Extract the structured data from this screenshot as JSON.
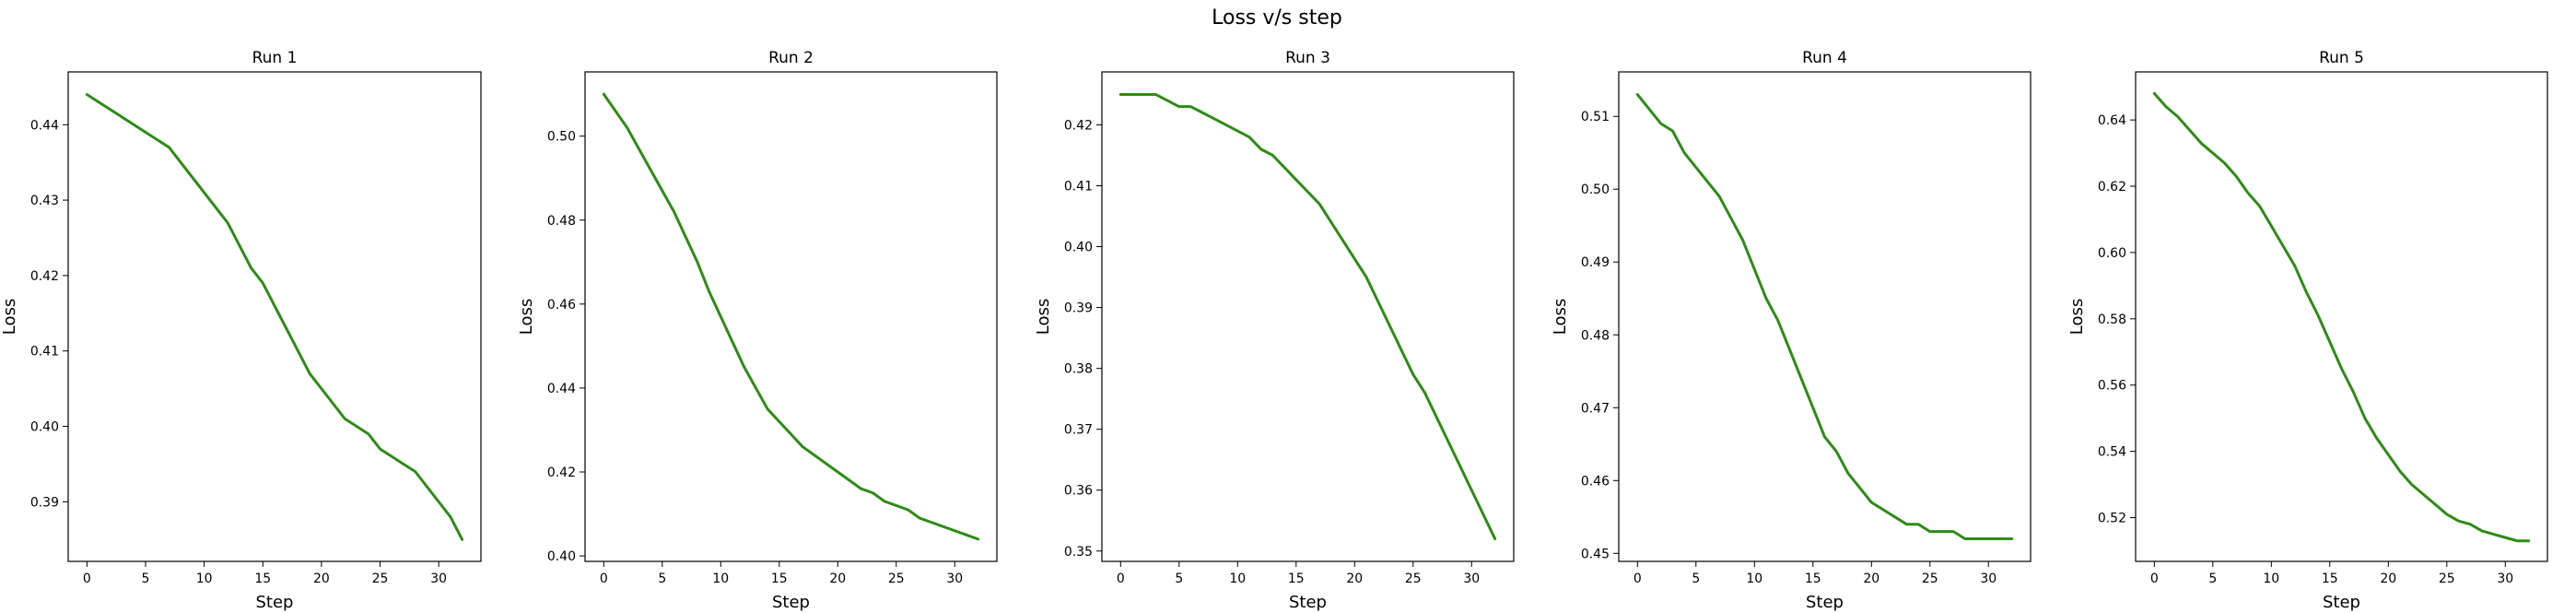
{
  "figure": {
    "title": "Loss v/s step"
  },
  "colors": {
    "line": "#2e8b16"
  },
  "chart_data": [
    {
      "type": "line",
      "title": "Run 1",
      "xlabel": "Step",
      "ylabel": "Loss",
      "xlim": [
        -1.6,
        33.6
      ],
      "ylim": [
        0.3821,
        0.447
      ],
      "xticks": [
        0,
        5,
        10,
        15,
        20,
        25,
        30
      ],
      "yticks": [
        0.39,
        0.4,
        0.41,
        0.42,
        0.43,
        0.44
      ],
      "ytick_labels": [
        "0.39",
        "0.40",
        "0.41",
        "0.42",
        "0.43",
        "0.44"
      ],
      "grid": false,
      "x": [
        0,
        1,
        2,
        3,
        4,
        5,
        6,
        7,
        8,
        9,
        10,
        11,
        12,
        13,
        14,
        15,
        16,
        17,
        18,
        19,
        20,
        21,
        22,
        23,
        24,
        25,
        26,
        27,
        28,
        29,
        30,
        31,
        32
      ],
      "y": [
        0.444,
        0.443,
        0.442,
        0.441,
        0.44,
        0.439,
        0.438,
        0.437,
        0.435,
        0.433,
        0.431,
        0.429,
        0.427,
        0.424,
        0.421,
        0.419,
        0.416,
        0.413,
        0.41,
        0.407,
        0.405,
        0.403,
        0.401,
        0.4,
        0.399,
        0.397,
        0.396,
        0.395,
        0.394,
        0.392,
        0.39,
        0.388,
        0.385
      ]
    },
    {
      "type": "line",
      "title": "Run 2",
      "xlabel": "Step",
      "ylabel": "Loss",
      "xlim": [
        -1.6,
        33.6
      ],
      "ylim": [
        0.3987,
        0.5153
      ],
      "xticks": [
        0,
        5,
        10,
        15,
        20,
        25,
        30
      ],
      "yticks": [
        0.4,
        0.42,
        0.44,
        0.46,
        0.48,
        0.5
      ],
      "ytick_labels": [
        "0.40",
        "0.42",
        "0.44",
        "0.46",
        "0.48",
        "0.50"
      ],
      "grid": false,
      "x": [
        0,
        1,
        2,
        3,
        4,
        5,
        6,
        7,
        8,
        9,
        10,
        11,
        12,
        13,
        14,
        15,
        16,
        17,
        18,
        19,
        20,
        21,
        22,
        23,
        24,
        25,
        26,
        27,
        28,
        29,
        30,
        31,
        32
      ],
      "y": [
        0.51,
        0.506,
        0.502,
        0.497,
        0.492,
        0.487,
        0.482,
        0.476,
        0.47,
        0.463,
        0.457,
        0.451,
        0.445,
        0.44,
        0.435,
        0.432,
        0.429,
        0.426,
        0.424,
        0.422,
        0.42,
        0.418,
        0.416,
        0.415,
        0.413,
        0.412,
        0.411,
        0.409,
        0.408,
        0.407,
        0.406,
        0.405,
        0.404
      ]
    },
    {
      "type": "line",
      "title": "Run 3",
      "xlabel": "Step",
      "ylabel": "Loss",
      "xlim": [
        -1.6,
        33.6
      ],
      "ylim": [
        0.3483,
        0.4287
      ],
      "xticks": [
        0,
        5,
        10,
        15,
        20,
        25,
        30
      ],
      "yticks": [
        0.35,
        0.36,
        0.37,
        0.38,
        0.39,
        0.4,
        0.41,
        0.42
      ],
      "ytick_labels": [
        "0.35",
        "0.36",
        "0.37",
        "0.38",
        "0.39",
        "0.40",
        "0.41",
        "0.42"
      ],
      "grid": false,
      "x": [
        0,
        1,
        2,
        3,
        4,
        5,
        6,
        7,
        8,
        9,
        10,
        11,
        12,
        13,
        14,
        15,
        16,
        17,
        18,
        19,
        20,
        21,
        22,
        23,
        24,
        25,
        26,
        27,
        28,
        29,
        30,
        31,
        32
      ],
      "y": [
        0.425,
        0.425,
        0.425,
        0.425,
        0.424,
        0.423,
        0.423,
        0.422,
        0.421,
        0.42,
        0.419,
        0.418,
        0.416,
        0.415,
        0.413,
        0.411,
        0.409,
        0.407,
        0.404,
        0.401,
        0.398,
        0.395,
        0.391,
        0.387,
        0.383,
        0.379,
        0.376,
        0.372,
        0.368,
        0.364,
        0.36,
        0.356,
        0.352
      ]
    },
    {
      "type": "line",
      "title": "Run 4",
      "xlabel": "Step",
      "ylabel": "Loss",
      "xlim": [
        -1.6,
        33.6
      ],
      "ylim": [
        0.4489,
        0.5161
      ],
      "xticks": [
        0,
        5,
        10,
        15,
        20,
        25,
        30
      ],
      "yticks": [
        0.45,
        0.46,
        0.47,
        0.48,
        0.49,
        0.5,
        0.51
      ],
      "ytick_labels": [
        "0.45",
        "0.46",
        "0.47",
        "0.48",
        "0.49",
        "0.50",
        "0.51"
      ],
      "grid": false,
      "x": [
        0,
        1,
        2,
        3,
        4,
        5,
        6,
        7,
        8,
        9,
        10,
        11,
        12,
        13,
        14,
        15,
        16,
        17,
        18,
        19,
        20,
        21,
        22,
        23,
        24,
        25,
        26,
        27,
        28,
        29,
        30,
        31,
        32
      ],
      "y": [
        0.513,
        0.511,
        0.509,
        0.508,
        0.505,
        0.503,
        0.501,
        0.499,
        0.496,
        0.493,
        0.489,
        0.485,
        0.482,
        0.478,
        0.474,
        0.47,
        0.466,
        0.464,
        0.461,
        0.459,
        0.457,
        0.456,
        0.455,
        0.454,
        0.454,
        0.453,
        0.453,
        0.453,
        0.452,
        0.452,
        0.452,
        0.452,
        0.452
      ]
    },
    {
      "type": "line",
      "title": "Run 5",
      "xlabel": "Step",
      "ylabel": "Loss",
      "xlim": [
        -1.6,
        33.6
      ],
      "ylim": [
        0.5068,
        0.6545
      ],
      "xticks": [
        0,
        5,
        10,
        15,
        20,
        25,
        30
      ],
      "yticks": [
        0.52,
        0.54,
        0.56,
        0.58,
        0.6,
        0.62,
        0.64
      ],
      "ytick_labels": [
        "0.52",
        "0.54",
        "0.56",
        "0.58",
        "0.60",
        "0.62",
        "0.64"
      ],
      "grid": false,
      "x": [
        0,
        1,
        2,
        3,
        4,
        5,
        6,
        7,
        8,
        9,
        10,
        11,
        12,
        13,
        14,
        15,
        16,
        17,
        18,
        19,
        20,
        21,
        22,
        23,
        24,
        25,
        26,
        27,
        28,
        29,
        30,
        31,
        32
      ],
      "y": [
        0.648,
        0.644,
        0.641,
        0.637,
        0.633,
        0.63,
        0.627,
        0.623,
        0.618,
        0.614,
        0.608,
        0.602,
        0.596,
        0.588,
        0.581,
        0.573,
        0.565,
        0.558,
        0.55,
        0.544,
        0.539,
        0.534,
        0.53,
        0.527,
        0.524,
        0.521,
        0.519,
        0.518,
        0.516,
        0.515,
        0.514,
        0.513,
        0.513
      ]
    }
  ]
}
